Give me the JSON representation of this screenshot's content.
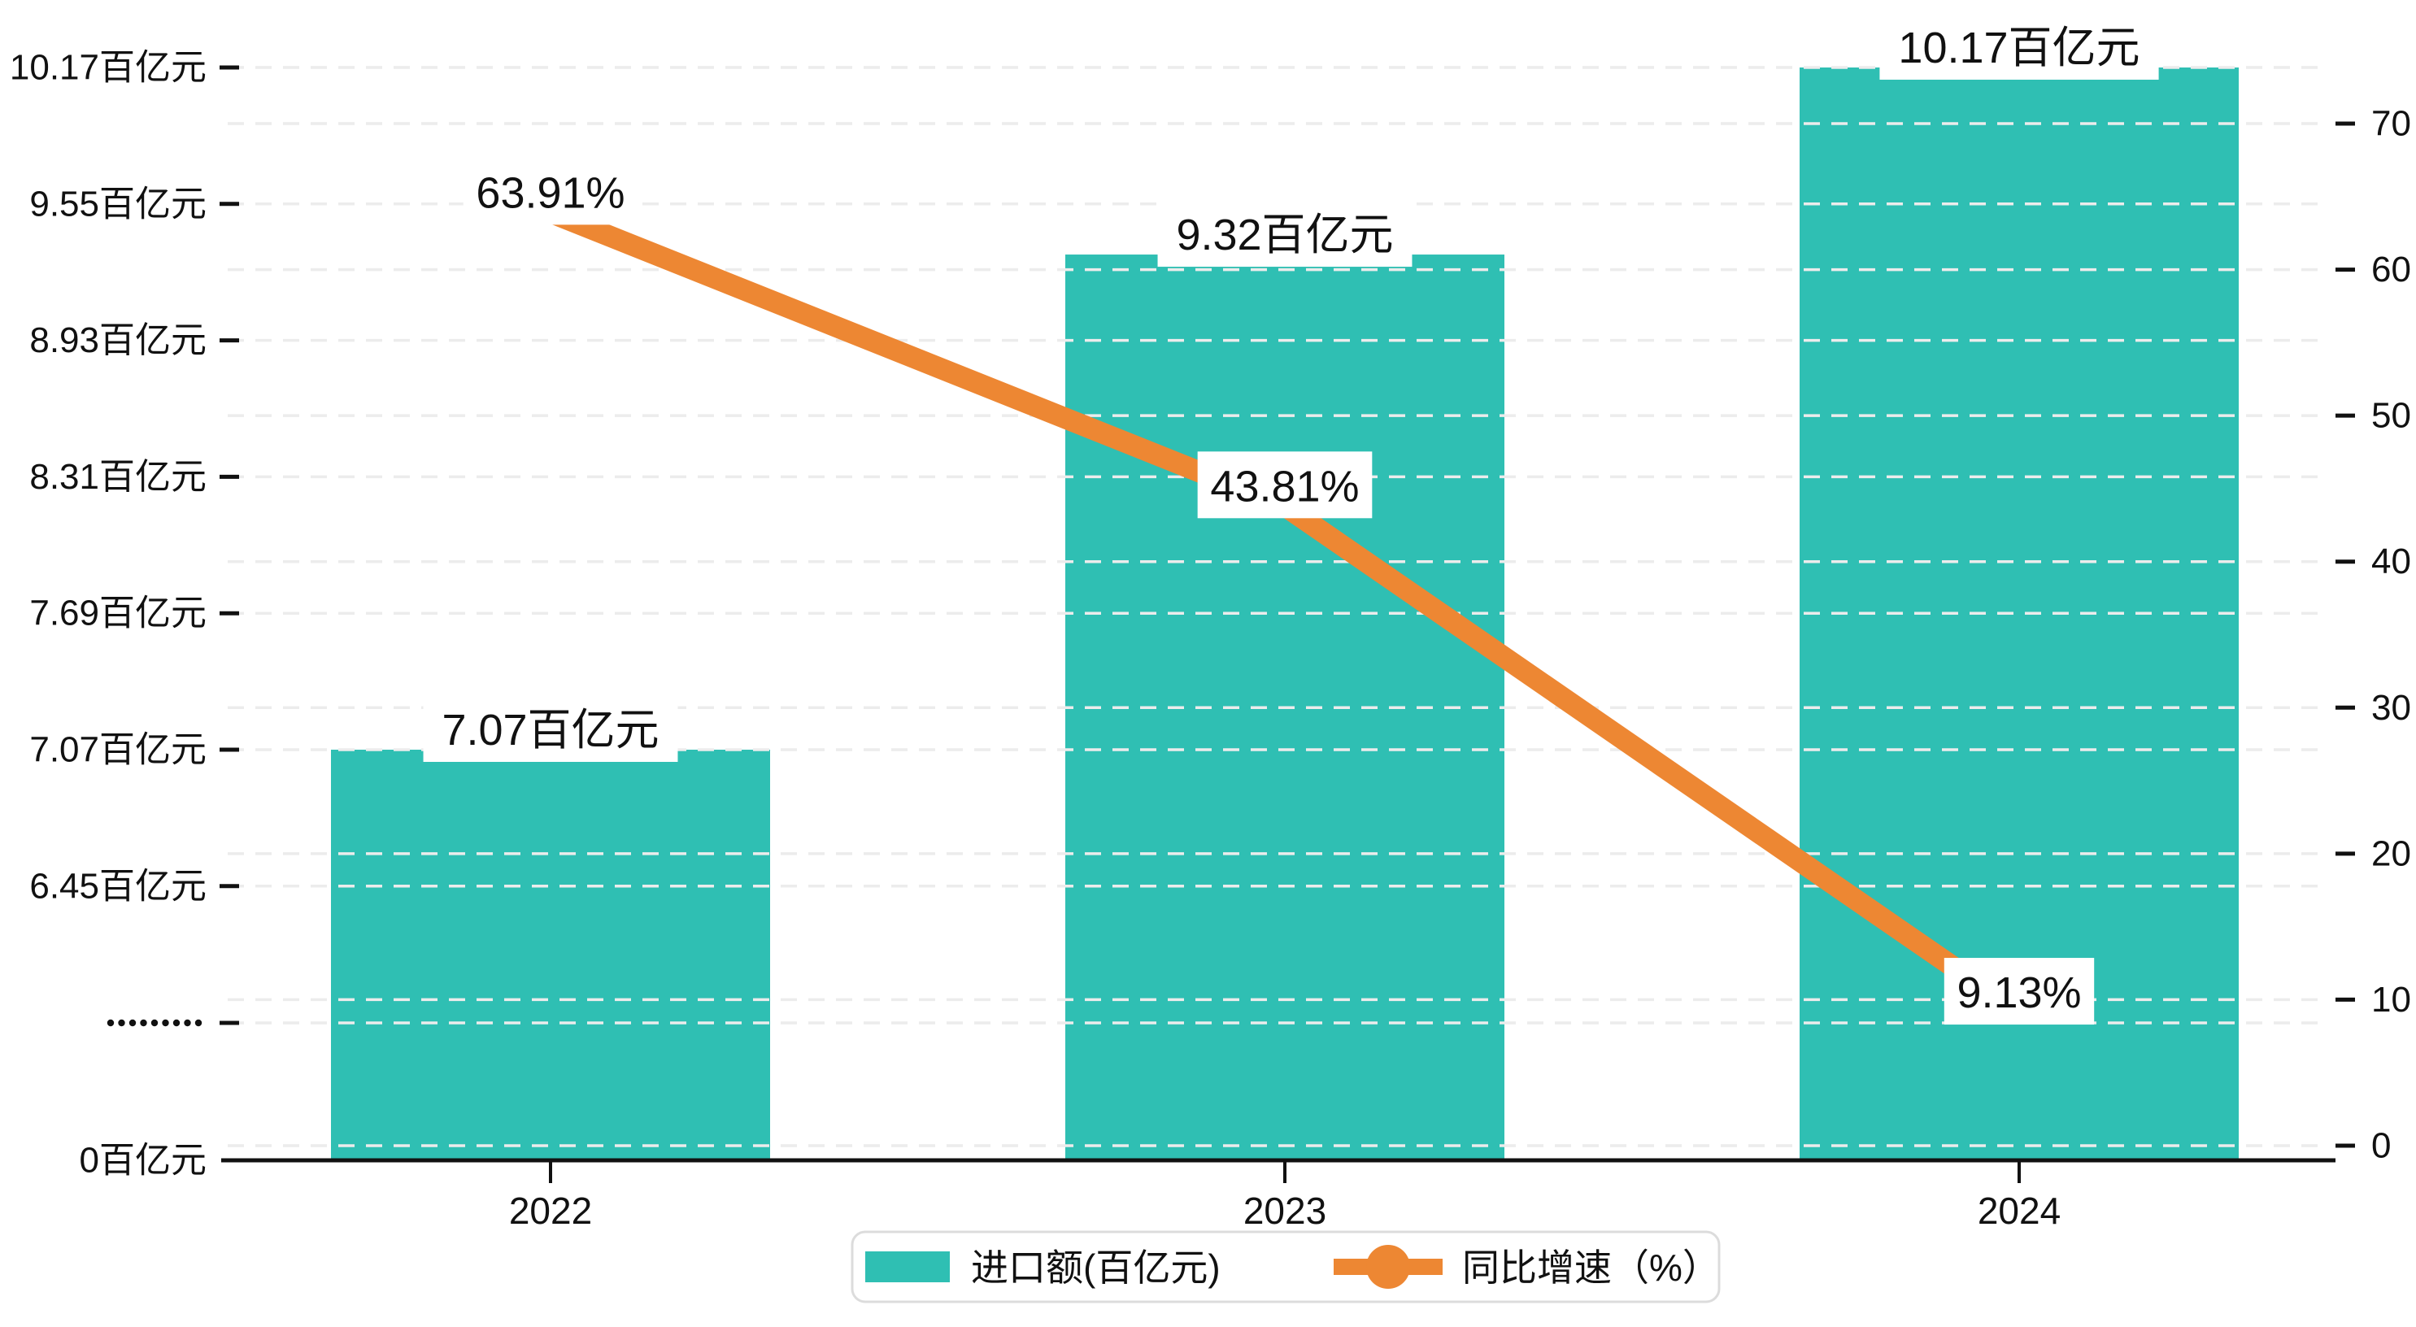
{
  "chart_data": {
    "type": "bar",
    "subtype": "bar-line-combo",
    "categories": [
      "2022",
      "2023",
      "2024"
    ],
    "series": [
      {
        "name": "进口额(百亿元)",
        "type": "bar",
        "axis": "left",
        "values": [
          7.07,
          9.32,
          10.17
        ],
        "data_labels": [
          "7.07百亿元",
          "9.32百亿元",
          "10.17百亿元"
        ],
        "color": "#2FBFB3"
      },
      {
        "name": "同比增速（%）",
        "type": "line",
        "axis": "right",
        "values": [
          63.91,
          43.81,
          9.13
        ],
        "data_labels": [
          "63.91%",
          "43.81%",
          "9.13%"
        ],
        "color": "#ED8733"
      }
    ],
    "left_axis": {
      "tick_labels": [
        "10.17百亿元",
        "9.55百亿元",
        "8.93百亿元",
        "8.31百亿元",
        "7.69百亿元",
        "7.07百亿元",
        "6.45百亿元"
      ],
      "tick_values": [
        10.17,
        9.55,
        8.93,
        8.31,
        7.69,
        7.07,
        6.45
      ],
      "axis_break_symbol": "·········",
      "zero_label": "0百亿元",
      "has_axis_break": true
    },
    "right_axis": {
      "tick_labels": [
        "70",
        "60",
        "50",
        "40",
        "30",
        "20",
        "10",
        "0"
      ],
      "min": 0,
      "max": 70,
      "step": 10
    },
    "legend": {
      "position": "bottom-center",
      "items": [
        {
          "label": "进口额(百亿元)",
          "marker": "bar-swatch",
          "color": "#2FBFB3"
        },
        {
          "label": "同比增速（%）",
          "marker": "line-with-dot",
          "color": "#ED8733"
        }
      ]
    },
    "grid": {
      "visible": true,
      "style": "dashed",
      "color": "#ececec"
    },
    "colors": {
      "bar": "#2FBFB3",
      "line": "#ED8733",
      "text": "#111111",
      "axis_line": "#111111",
      "gridline": "#ececec",
      "legend_border": "#dcdcdc",
      "background": "#ffffff",
      "label_box_background": "#ffffff"
    },
    "title": "",
    "xlabel": "",
    "ylabel_left": "百亿元",
    "ylabel_right": "%"
  }
}
